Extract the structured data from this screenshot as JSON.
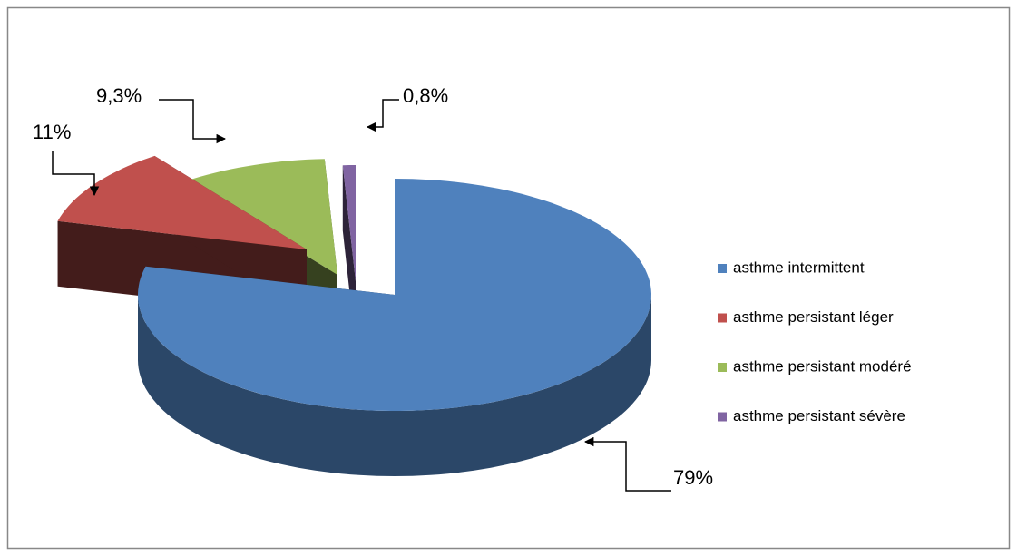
{
  "chart_data": {
    "type": "pie3d",
    "series": [
      {
        "name": "asthme intermittent",
        "color": "#4f81bd",
        "value": 79,
        "value_label": "79%"
      },
      {
        "name": "asthme persistant léger",
        "color": "#c0504d",
        "value": 11,
        "value_label": "11%"
      },
      {
        "name": "asthme persistant modéré",
        "color": "#9bbb59",
        "value": 9.3,
        "value_label": "9,3%"
      },
      {
        "name": "asthme persistant sévère",
        "color": "#8064a2",
        "value": 0.8,
        "value_label": "0,8%"
      }
    ],
    "legend": "right"
  }
}
